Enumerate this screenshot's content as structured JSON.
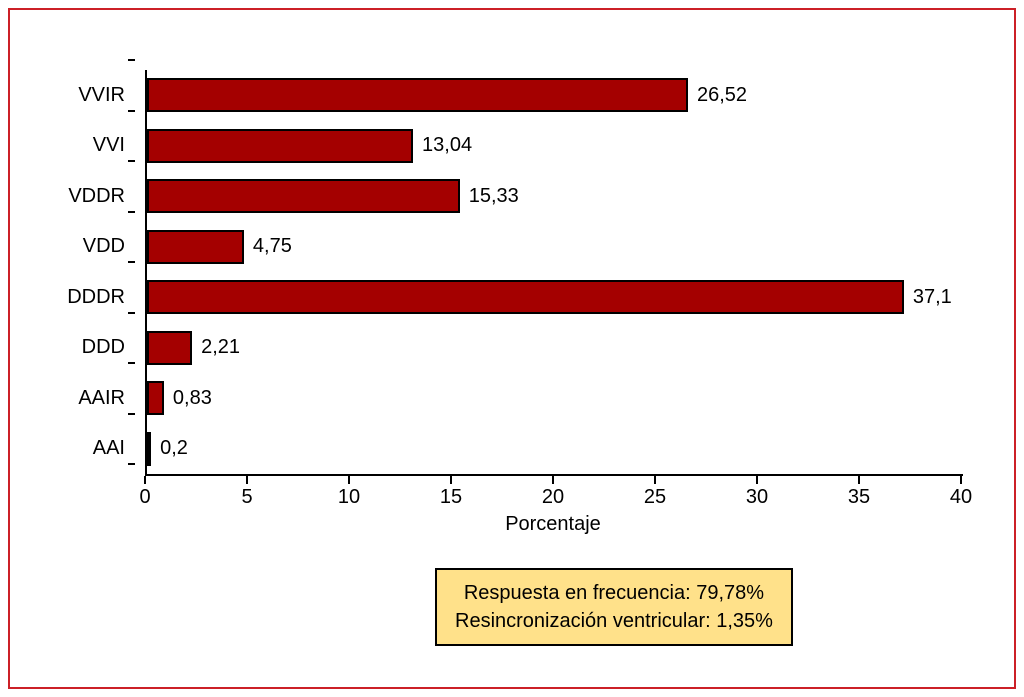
{
  "frame": {
    "border_color": "#cc2027"
  },
  "chart_data": {
    "type": "bar",
    "orientation": "horizontal",
    "categories": [
      "VVIR",
      "VVI",
      "VDDR",
      "VDD",
      "DDDR",
      "DDD",
      "AAIR",
      "AAI"
    ],
    "values": [
      26.52,
      13.04,
      15.33,
      4.75,
      37.1,
      2.21,
      0.83,
      0.2
    ],
    "value_labels": [
      "26,52",
      "13,04",
      "15,33",
      "4,75",
      "37,1",
      "2,21",
      "0,83",
      "0,2"
    ],
    "xlabel": "Porcentaje",
    "xlim": [
      0,
      40
    ],
    "xticks": [
      0,
      5,
      10,
      15,
      20,
      25,
      30,
      35,
      40
    ],
    "grid": false,
    "legend": "none",
    "bar_color": "#a40000",
    "bar_border_color": "#000000",
    "annotation": {
      "lines": [
        "Respuesta en frecuencia: 79,78%",
        "Resincronización ventricular: 1,35%"
      ],
      "bg_color": "#ffe18a",
      "border_color": "#000000"
    }
  }
}
